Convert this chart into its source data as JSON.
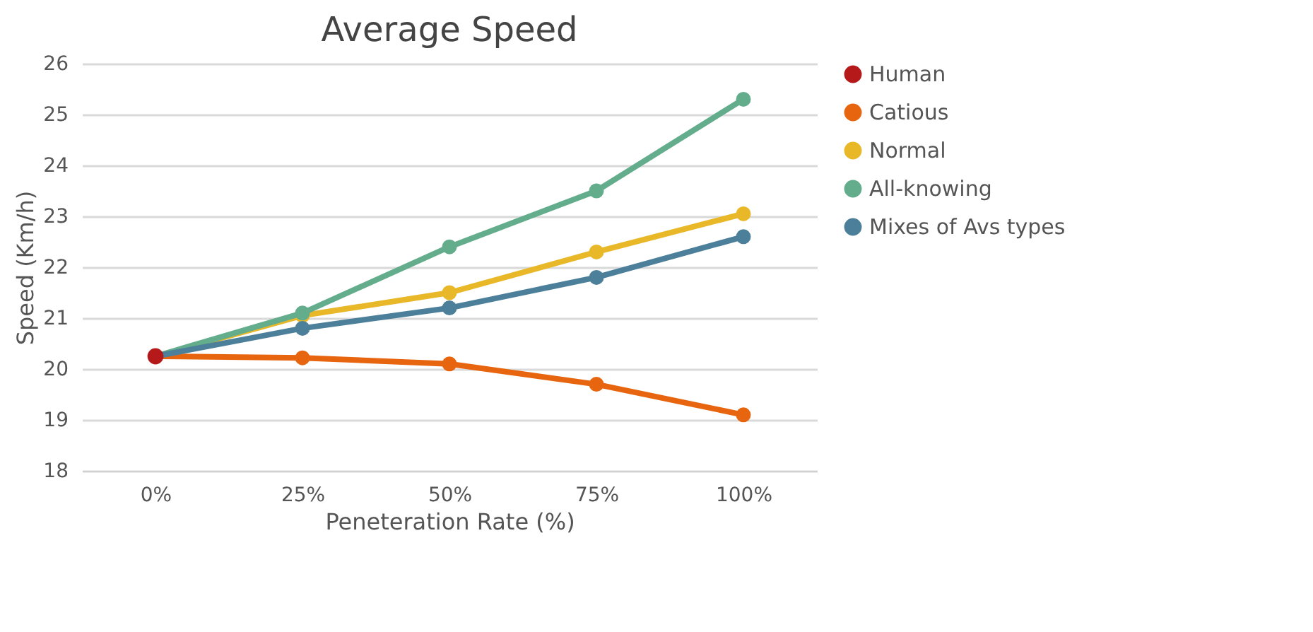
{
  "chart_data": {
    "type": "line",
    "title": "Average Speed",
    "xlabel": "Peneteration Rate (%)",
    "ylabel": "Speed (Km/h)",
    "categories": [
      "0%",
      "25%",
      "50%",
      "75%",
      "100%"
    ],
    "ylim": [
      18,
      26
    ],
    "yticks": [
      18,
      19,
      20,
      21,
      22,
      23,
      24,
      25,
      26
    ],
    "grid": "y",
    "legend": "right",
    "marker": "circle",
    "series": [
      {
        "name": "Human",
        "type": "scatter",
        "color": "#b5191a",
        "values": [
          20.25,
          null,
          null,
          null,
          null
        ]
      },
      {
        "name": "Catious",
        "color": "#e8650f",
        "values": [
          20.25,
          20.22,
          20.1,
          19.7,
          19.1
        ]
      },
      {
        "name": "Normal",
        "color": "#e8b828",
        "values": [
          20.25,
          21.05,
          21.5,
          22.3,
          23.05
        ]
      },
      {
        "name": "All-knowing",
        "color": "#63ac8c",
        "values": [
          20.25,
          21.1,
          22.4,
          23.5,
          25.3
        ]
      },
      {
        "name": "Mixes of Avs types",
        "color": "#4c7f99",
        "values": [
          20.25,
          20.8,
          21.2,
          21.8,
          22.6
        ]
      }
    ]
  }
}
